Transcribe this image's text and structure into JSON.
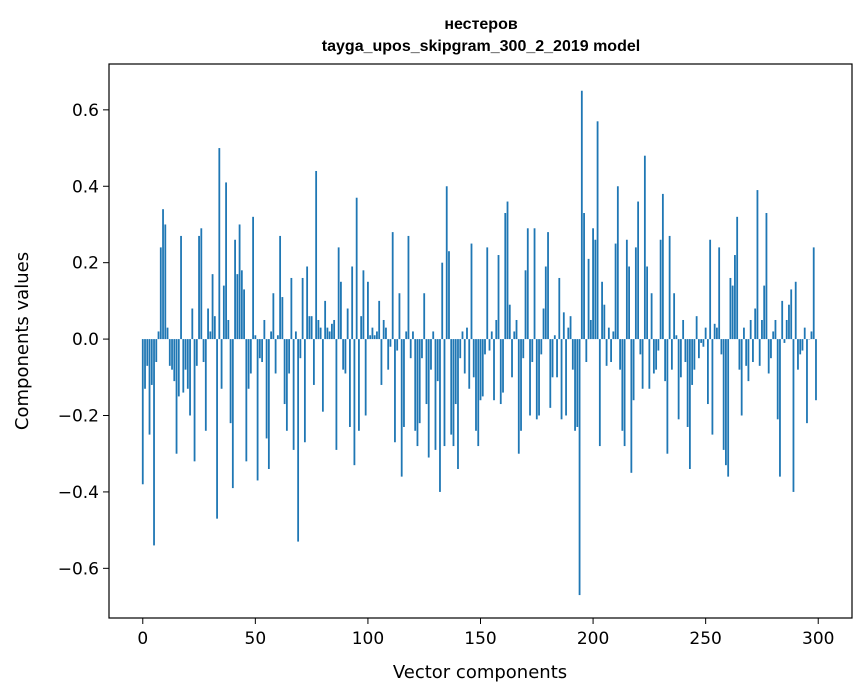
{
  "chart_data": {
    "type": "bar",
    "title": "нестеров",
    "subtitle": "tayga_upos_skipgram_300_2_2019 model",
    "xlabel": "Vector components",
    "ylabel": "Components values",
    "xlim": [
      -15,
      315
    ],
    "ylim": [
      -0.73,
      0.72
    ],
    "xticks": [
      0,
      50,
      100,
      150,
      200,
      250,
      300
    ],
    "yticks": [
      -0.6,
      -0.4,
      -0.2,
      0.0,
      0.2,
      0.4,
      0.6
    ],
    "xtick_labels": [
      "0",
      "50",
      "100",
      "150",
      "200",
      "250",
      "300"
    ],
    "ytick_labels": [
      "−0.6",
      "−0.4",
      "−0.2",
      "0.0",
      "0.2",
      "0.4",
      "0.6"
    ],
    "bar_color": "#1f77b4",
    "grid": false,
    "values": [
      -0.38,
      -0.13,
      -0.07,
      -0.25,
      -0.12,
      -0.54,
      -0.06,
      0.02,
      0.24,
      0.34,
      0.3,
      0.03,
      -0.07,
      -0.08,
      -0.11,
      -0.3,
      -0.15,
      0.27,
      -0.14,
      -0.08,
      -0.13,
      -0.2,
      0.08,
      -0.32,
      -0.07,
      0.27,
      0.29,
      -0.06,
      -0.24,
      0.08,
      0.02,
      0.17,
      0.06,
      -0.47,
      0.5,
      -0.13,
      0.14,
      0.41,
      0.05,
      -0.22,
      -0.39,
      0.26,
      0.17,
      0.3,
      0.18,
      0.13,
      -0.32,
      -0.13,
      -0.09,
      0.32,
      0.01,
      -0.37,
      -0.05,
      -0.06,
      0.05,
      -0.26,
      -0.34,
      0.02,
      0.12,
      -0.09,
      0.01,
      0.27,
      0.11,
      -0.17,
      -0.24,
      -0.09,
      0.16,
      -0.29,
      0.02,
      -0.53,
      -0.05,
      0.16,
      -0.27,
      0.19,
      0.06,
      0.06,
      -0.12,
      0.44,
      0.05,
      0.03,
      -0.19,
      0.1,
      0.03,
      0.02,
      0.04,
      0.05,
      -0.29,
      0.24,
      0.15,
      -0.08,
      -0.09,
      0.08,
      -0.23,
      0.19,
      -0.33,
      0.37,
      -0.24,
      0.06,
      0.18,
      -0.2,
      0.15,
      0.01,
      0.03,
      0.01,
      0.02,
      0.1,
      -0.12,
      0.05,
      0.03,
      -0.08,
      -0.02,
      0.28,
      -0.27,
      -0.03,
      0.12,
      -0.36,
      -0.23,
      0.02,
      0.27,
      -0.05,
      0.02,
      -0.24,
      -0.28,
      -0.22,
      -0.05,
      0.12,
      -0.17,
      -0.31,
      -0.08,
      0.02,
      -0.29,
      -0.11,
      -0.4,
      0.2,
      -0.28,
      0.4,
      0.23,
      -0.25,
      -0.28,
      -0.17,
      -0.34,
      -0.05,
      0.02,
      -0.09,
      0.03,
      -0.13,
      0.25,
      -0.1,
      -0.24,
      -0.28,
      -0.16,
      -0.15,
      -0.04,
      0.24,
      -0.03,
      0.02,
      -0.16,
      0.05,
      0.22,
      -0.17,
      -0.14,
      0.33,
      0.36,
      0.09,
      -0.1,
      0.02,
      0.05,
      -0.3,
      -0.24,
      -0.05,
      0.18,
      0.29,
      -0.2,
      -0.06,
      0.29,
      -0.21,
      -0.2,
      -0.04,
      0.08,
      0.19,
      0.28,
      -0.18,
      -0.1,
      0.01,
      -0.1,
      0.16,
      -0.21,
      0.07,
      -0.2,
      0.03,
      0.06,
      -0.08,
      -0.24,
      -0.23,
      -0.67,
      0.65,
      0.33,
      -0.06,
      0.21,
      0.05,
      0.29,
      0.26,
      0.57,
      -0.28,
      0.15,
      0.09,
      -0.07,
      0.03,
      -0.06,
      0.02,
      0.25,
      0.4,
      -0.08,
      -0.24,
      -0.28,
      0.26,
      0.19,
      -0.35,
      -0.16,
      0.24,
      0.36,
      -0.04,
      -0.13,
      0.48,
      0.19,
      -0.13,
      0.12,
      -0.09,
      -0.08,
      -0.03,
      0.26,
      0.38,
      -0.11,
      -0.3,
      0.27,
      -0.08,
      0.12,
      0.01,
      -0.21,
      -0.1,
      0.05,
      -0.06,
      -0.23,
      -0.34,
      -0.12,
      -0.08,
      0.06,
      -0.05,
      -0.01,
      -0.02,
      0.03,
      -0.17,
      0.26,
      -0.25,
      0.04,
      0.03,
      0.24,
      -0.04,
      -0.29,
      -0.33,
      -0.36,
      0.16,
      0.14,
      0.22,
      0.32,
      -0.08,
      -0.2,
      0.03,
      -0.07,
      -0.11,
      0.05,
      -0.06,
      0.08,
      0.39,
      -0.07,
      0.05,
      0.14,
      0.33,
      -0.09,
      -0.05,
      0.02,
      0.05,
      -0.21,
      -0.36,
      0.1,
      -0.01,
      0.05,
      0.09,
      0.13,
      -0.4,
      0.15,
      -0.08,
      -0.04,
      -0.03,
      0.03,
      -0.22,
      0.0,
      0.02,
      0.24,
      -0.16
    ]
  }
}
